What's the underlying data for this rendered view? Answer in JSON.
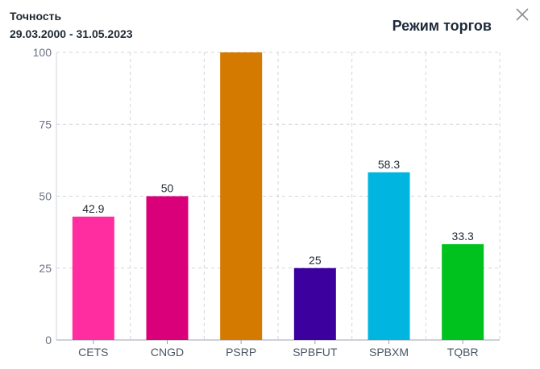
{
  "header": {
    "metric": "Точность",
    "period": "29.03.2000 - 31.05.2023",
    "title": "Режим торгов"
  },
  "icons": {
    "close": "close-icon"
  },
  "chart_data": {
    "type": "bar",
    "title": "Режим торгов",
    "categories": [
      "CETS",
      "CNGD",
      "PSRP",
      "SPBFUT",
      "SPBXM",
      "TQBR"
    ],
    "values": [
      42.9,
      50,
      100,
      25,
      58.3,
      33.3
    ],
    "value_labels": [
      "42.9",
      "50",
      "",
      "25",
      "58.3",
      "33.3"
    ],
    "colors": [
      "#ff2d9f",
      "#d9007a",
      "#d47a00",
      "#3c009e",
      "#00b5e0",
      "#00c21e"
    ],
    "ylim": [
      0,
      100
    ],
    "yticks": [
      0,
      25,
      50,
      75,
      100
    ],
    "grid": true
  }
}
